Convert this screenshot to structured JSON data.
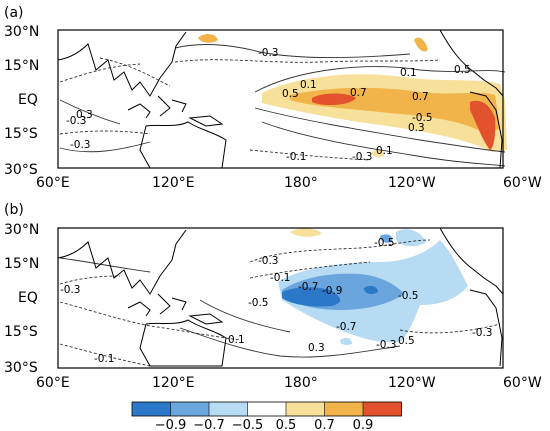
{
  "panels": [
    {
      "label": "(a)",
      "lat_ticks": [
        "30°N",
        "15°N",
        "EQ",
        "15°S",
        "30°S"
      ],
      "lon_ticks": [
        "60°E",
        "120°E",
        "180°",
        "120°W",
        "60°W"
      ],
      "contour_labels": [
        "-0.3",
        "-0.3",
        "0.3",
        "-0.3",
        "0.1",
        "0.1",
        "0.5",
        "0.5",
        "0.7",
        "0.7",
        "-0.5",
        "0.3",
        "-0.1",
        "-0.3",
        "0.1"
      ]
    },
    {
      "label": "(b)",
      "lat_ticks": [
        "30°N",
        "15°N",
        "EQ",
        "15°S",
        "30°S"
      ],
      "lon_ticks": [
        "60°E",
        "120°E",
        "180°",
        "120°W",
        "60°W"
      ],
      "contour_labels": [
        "-0.5",
        "-0.3",
        "-0.1",
        "-0.7",
        "-0.9",
        "-0.5",
        "-0.5",
        "-0.3",
        "-0.7",
        "0.1",
        "0.3",
        "-0.3",
        "0.5",
        "-0.3",
        "-0.1"
      ]
    }
  ],
  "colorbar": {
    "labels": [
      "−0.9",
      "−0.7",
      "−0.5",
      "0.5",
      "0.7",
      "0.9"
    ],
    "colors": [
      "#2b78c8",
      "#6aa6dd",
      "#b6dbf2",
      "#ffffff",
      "#f7e09a",
      "#f0b44a",
      "#e2522c"
    ]
  },
  "colors": {
    "land_line": "#000000",
    "contour_solid": "#333333",
    "contour_dashed": "#333333",
    "pos_light": "#f7e09a",
    "pos_mid": "#f0b44a",
    "pos_strong": "#e2522c",
    "neg_light": "#b6dbf2",
    "neg_mid": "#6aa6dd",
    "neg_strong": "#2b78c8"
  }
}
